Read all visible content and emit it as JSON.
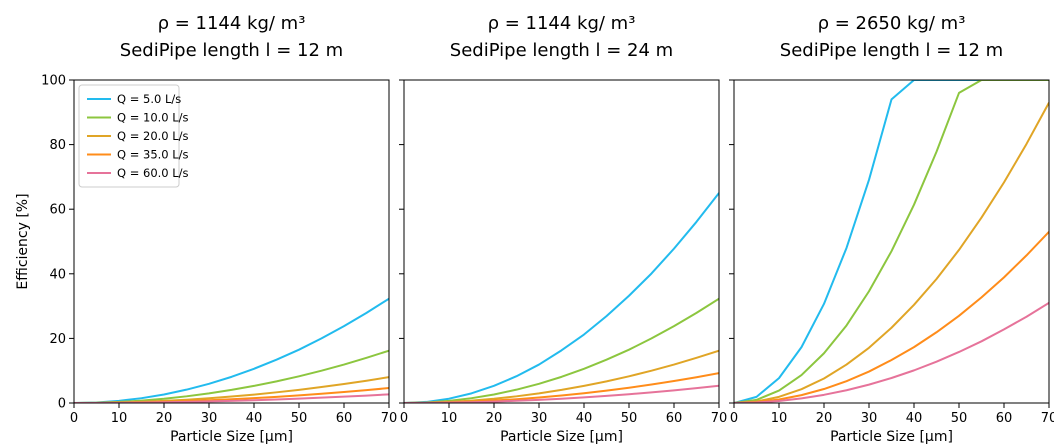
{
  "chart_data": [
    {
      "type": "line",
      "title_line1": "ρ = 1144 kg/ m³",
      "title_line2": "SediPipe length l = 12 m",
      "xlabel": "Particle Size [µm]",
      "ylabel": "Efficiency [%]",
      "xlim": [
        0,
        70
      ],
      "ylim": [
        0,
        100
      ],
      "xticks": [
        "0",
        "10",
        "20",
        "30",
        "40",
        "50",
        "60",
        "70"
      ],
      "yticks": [
        "0",
        "20",
        "40",
        "60",
        "80",
        "100"
      ],
      "grid": false,
      "legend": "top-left",
      "x": [
        0,
        5,
        10,
        15,
        20,
        25,
        30,
        35,
        40,
        45,
        50,
        55,
        60,
        65,
        70
      ],
      "series": [
        {
          "name": "Q = 5.0 L/s",
          "color": "#22bbee",
          "values": [
            0,
            0.17,
            0.66,
            1.49,
            2.64,
            4.13,
            5.94,
            8.09,
            10.6,
            13.4,
            16.5,
            20.0,
            23.8,
            27.9,
            32.3
          ]
        },
        {
          "name": "Q = 10.0 L/s",
          "color": "#8cc63f",
          "values": [
            0,
            0.08,
            0.33,
            0.74,
            1.32,
            2.07,
            2.98,
            4.05,
            5.29,
            6.69,
            8.27,
            10.0,
            11.9,
            14.0,
            16.2
          ]
        },
        {
          "name": "Q = 20.0 L/s",
          "color": "#e0a526",
          "values": [
            0,
            0.04,
            0.16,
            0.37,
            0.65,
            1.02,
            1.47,
            2.0,
            2.61,
            3.31,
            4.08,
            4.94,
            5.88,
            6.9,
            8.0
          ]
        },
        {
          "name": "Q = 35.0 L/s",
          "color": "#ff8c1a",
          "values": [
            0,
            0.02,
            0.1,
            0.21,
            0.38,
            0.59,
            0.85,
            1.16,
            1.51,
            1.91,
            2.36,
            2.86,
            3.4,
            3.99,
            4.63
          ]
        },
        {
          "name": "Q = 60.0 L/s",
          "color": "#e6739a",
          "values": [
            0,
            0.01,
            0.05,
            0.12,
            0.22,
            0.34,
            0.49,
            0.67,
            0.87,
            1.1,
            1.36,
            1.65,
            1.96,
            2.3,
            2.67
          ]
        }
      ]
    },
    {
      "type": "line",
      "title_line1": "ρ = 1144 kg/ m³",
      "title_line2": "SediPipe length l = 24 m",
      "xlabel": "Particle Size [µm]",
      "ylabel": "",
      "xlim": [
        0,
        70
      ],
      "ylim": [
        0,
        100
      ],
      "xticks": [
        "0",
        "10",
        "20",
        "30",
        "40",
        "50",
        "60",
        "70"
      ],
      "yticks": [],
      "grid": false,
      "legend": "",
      "x": [
        0,
        5,
        10,
        15,
        20,
        25,
        30,
        35,
        40,
        45,
        50,
        55,
        60,
        65,
        70
      ],
      "series": [
        {
          "color": "#22bbee",
          "values": [
            0,
            0.33,
            1.33,
            2.99,
            5.31,
            8.29,
            11.9,
            16.3,
            21.2,
            26.9,
            33.2,
            40.1,
            47.8,
            56.1,
            65.0
          ]
        },
        {
          "color": "#8cc63f",
          "values": [
            0,
            0.17,
            0.66,
            1.49,
            2.64,
            4.13,
            5.94,
            8.09,
            10.6,
            13.4,
            16.5,
            20.0,
            23.8,
            27.9,
            32.3
          ]
        },
        {
          "color": "#e0a526",
          "values": [
            0,
            0.08,
            0.33,
            0.74,
            1.32,
            2.07,
            2.98,
            4.05,
            5.29,
            6.69,
            8.27,
            10.0,
            11.9,
            14.0,
            16.2
          ]
        },
        {
          "color": "#ff8c1a",
          "values": [
            0,
            0.05,
            0.19,
            0.42,
            0.76,
            1.18,
            1.7,
            2.31,
            3.02,
            3.83,
            4.72,
            5.72,
            6.8,
            7.98,
            9.26
          ]
        },
        {
          "color": "#e6739a",
          "values": [
            0,
            0.03,
            0.11,
            0.25,
            0.44,
            0.68,
            0.98,
            1.33,
            1.74,
            2.2,
            2.72,
            3.29,
            3.92,
            4.6,
            5.33
          ]
        }
      ]
    },
    {
      "type": "line",
      "title_line1": "ρ = 2650 kg/ m³",
      "title_line2": "SediPipe length l = 12 m",
      "xlabel": "Particle Size [µm]",
      "ylabel": "",
      "xlim": [
        0,
        70
      ],
      "ylim": [
        0,
        100
      ],
      "xticks": [
        "0",
        "10",
        "20",
        "30",
        "40",
        "50",
        "60",
        "70"
      ],
      "yticks": [],
      "grid": false,
      "legend": "",
      "x": [
        0,
        5,
        10,
        15,
        20,
        25,
        30,
        35,
        40,
        45,
        50,
        55,
        60,
        65,
        70
      ],
      "series": [
        {
          "color": "#22bbee",
          "values": [
            0,
            1.9,
            7.7,
            17.3,
            30.7,
            48.0,
            69.1,
            94.0,
            100,
            100,
            100,
            100,
            100,
            100,
            100
          ]
        },
        {
          "color": "#8cc63f",
          "values": [
            0,
            0.96,
            3.84,
            8.64,
            15.4,
            24.0,
            34.6,
            47.0,
            61.4,
            77.8,
            96.0,
            100,
            100,
            100,
            100
          ]
        },
        {
          "color": "#e0a526",
          "values": [
            0,
            0.47,
            1.9,
            4.27,
            7.59,
            11.9,
            17.1,
            23.3,
            30.4,
            38.4,
            47.4,
            57.4,
            68.3,
            80.2,
            93.0
          ]
        },
        {
          "color": "#ff8c1a",
          "values": [
            0,
            0.27,
            1.08,
            2.43,
            4.33,
            6.76,
            9.73,
            13.3,
            17.3,
            21.9,
            27.0,
            32.7,
            38.9,
            45.7,
            53.0
          ]
        },
        {
          "color": "#e6739a",
          "values": [
            0,
            0.16,
            0.63,
            1.42,
            2.53,
            3.95,
            5.69,
            7.74,
            10.1,
            12.8,
            15.8,
            19.1,
            22.8,
            26.7,
            31.0
          ]
        }
      ]
    }
  ]
}
